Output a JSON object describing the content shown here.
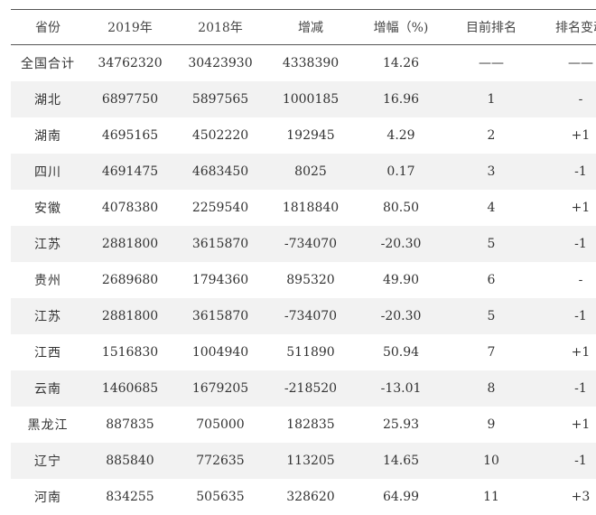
{
  "table": {
    "headers": [
      "省份",
      "2019年",
      "2018年",
      "增减",
      "增幅（%)",
      "目前排名",
      "排名变动"
    ],
    "rows": [
      [
        "全国合计",
        "34762320",
        "30423930",
        "4338390",
        "14.26",
        "——",
        "——"
      ],
      [
        "湖北",
        "6897750",
        "5897565",
        "1000185",
        "16.96",
        "1",
        "-"
      ],
      [
        "湖南",
        "4695165",
        "4502220",
        "192945",
        "4.29",
        "2",
        "+1"
      ],
      [
        "四川",
        "4691475",
        "4683450",
        "8025",
        "0.17",
        "3",
        "-1"
      ],
      [
        "安徽",
        "4078380",
        "2259540",
        "1818840",
        "80.50",
        "4",
        "+1"
      ],
      [
        "江苏",
        "2881800",
        "3615870",
        "-734070",
        "-20.30",
        "5",
        "-1"
      ],
      [
        "贵州",
        "2689680",
        "1794360",
        "895320",
        "49.90",
        "6",
        "-"
      ],
      [
        "江苏",
        "2881800",
        "3615870",
        "-734070",
        "-20.30",
        "5",
        "-1"
      ],
      [
        "江西",
        "1516830",
        "1004940",
        "511890",
        "50.94",
        "7",
        "+1"
      ],
      [
        "云南",
        "1460685",
        "1679205",
        "-218520",
        "-13.01",
        "8",
        "-1"
      ],
      [
        "黑龙江",
        "887835",
        "705000",
        "182835",
        "25.93",
        "9",
        "+1"
      ],
      [
        "辽宁",
        "885840",
        "772635",
        "113205",
        "14.65",
        "10",
        "-1"
      ],
      [
        "河南",
        "834255",
        "505635",
        "328620",
        "64.99",
        "11",
        "+3"
      ]
    ]
  }
}
